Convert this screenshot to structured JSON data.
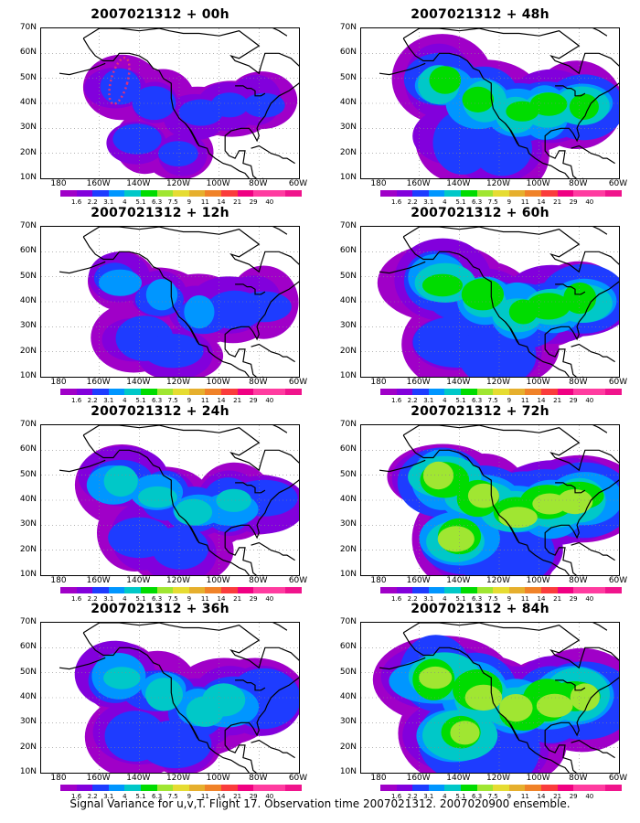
{
  "footer": "Signal Variance for u,v,T. Flight 17. Observation time 2007021312. 2007020900 ensemble.",
  "map": {
    "lat_labels": [
      "70N",
      "60N",
      "50N",
      "40N",
      "30N",
      "20N",
      "10N"
    ],
    "lon_labels": [
      "180",
      "160W",
      "140W",
      "120W",
      "100W",
      "80W",
      "60W"
    ],
    "colorbar_labels": [
      "1.6",
      "2.2",
      "3.1",
      "4",
      "5.1",
      "6.3",
      "7.5",
      "9",
      "11",
      "14",
      "21",
      "29",
      "40"
    ],
    "colorbar_colors": [
      "#a000c8",
      "#8200dc",
      "#1e3cff",
      "#0096ff",
      "#00c8c8",
      "#00dc00",
      "#a0e632",
      "#e6dc32",
      "#e6af2d",
      "#f08228",
      "#fa3c3c",
      "#f00082",
      "#ff3ca0"
    ]
  },
  "panels": [
    {
      "title": "2007021312 + 00h",
      "variance_level": 0.15
    },
    {
      "title": "2007021312 + 12h",
      "variance_level": 0.3
    },
    {
      "title": "2007021312 + 24h",
      "variance_level": 0.45
    },
    {
      "title": "2007021312 + 36h",
      "variance_level": 0.55
    },
    {
      "title": "2007021312 + 48h",
      "variance_level": 0.6
    },
    {
      "title": "2007021312 + 60h",
      "variance_level": 0.72
    },
    {
      "title": "2007021312 + 72h",
      "variance_level": 0.82
    },
    {
      "title": "2007021312 + 84h",
      "variance_level": 0.9
    }
  ],
  "flight_track_color": "#e0307a"
}
